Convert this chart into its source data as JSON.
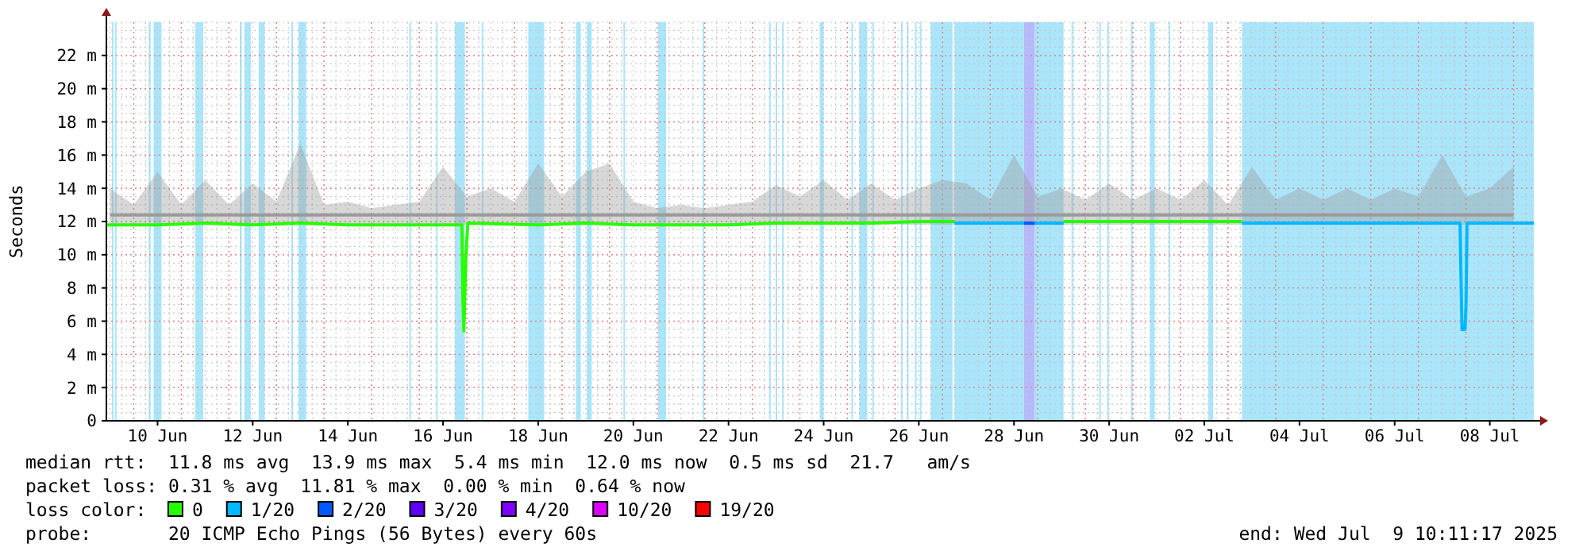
{
  "chart_data": {
    "type": "line",
    "ylabel": "Seconds",
    "legend_title": "loss color:",
    "legend": "bottom",
    "grid": true,
    "xlim": [
      "2025-06-09T10:11",
      "2025-07-09T10:11"
    ],
    "xticks": [
      {
        "value": "2025-06-10T12:00",
        "label": "10 Jun"
      },
      {
        "value": "2025-06-12T12:00",
        "label": "12 Jun"
      },
      {
        "value": "2025-06-14T12:00",
        "label": "14 Jun"
      },
      {
        "value": "2025-06-16T12:00",
        "label": "16 Jun"
      },
      {
        "value": "2025-06-18T12:00",
        "label": "18 Jun"
      },
      {
        "value": "2025-06-20T12:00",
        "label": "20 Jun"
      },
      {
        "value": "2025-06-22T12:00",
        "label": "22 Jun"
      },
      {
        "value": "2025-06-24T12:00",
        "label": "24 Jun"
      },
      {
        "value": "2025-06-26T12:00",
        "label": "26 Jun"
      },
      {
        "value": "2025-06-28T12:00",
        "label": "28 Jun"
      },
      {
        "value": "2025-06-30T12:00",
        "label": "30 Jun"
      },
      {
        "value": "2025-07-02T12:00",
        "label": "02 Jul"
      },
      {
        "value": "2025-07-04T12:00",
        "label": "04 Jul"
      },
      {
        "value": "2025-07-06T12:00",
        "label": "06 Jul"
      },
      {
        "value": "2025-07-08T12:00",
        "label": "08 Jul"
      }
    ],
    "ylim": [
      0,
      24
    ],
    "yticks": [
      0,
      {
        "value": 2,
        "label": "2 m"
      },
      {
        "value": 4,
        "label": "4 m"
      },
      {
        "value": 6,
        "label": "6 m"
      },
      {
        "value": 8,
        "label": "8 m"
      },
      {
        "value": 10,
        "label": "10 m"
      },
      {
        "value": 12,
        "label": "12 m"
      },
      {
        "value": 14,
        "label": "14 m"
      },
      {
        "value": 16,
        "label": "16 m"
      },
      {
        "value": 18,
        "label": "18 m"
      },
      {
        "value": 20,
        "label": "20 m"
      },
      {
        "value": 22,
        "label": "22 m"
      }
    ],
    "bands": [
      {
        "axis": "x",
        "from": "2025-06-09T13:00",
        "to": "2025-06-09T13:45",
        "color": "#a9e5fb"
      },
      {
        "axis": "x",
        "from": "2025-06-09T14:30",
        "to": "2025-06-09T15:15",
        "color": "#a9e5fb"
      },
      {
        "axis": "x",
        "from": "2025-06-10T07:30",
        "to": "2025-06-10T08:30",
        "color": "#a9e5fb"
      },
      {
        "axis": "x",
        "from": "2025-06-10T10:00",
        "to": "2025-06-10T14:00",
        "color": "#a9e5fb"
      },
      {
        "axis": "x",
        "from": "2025-06-11T07:00",
        "to": "2025-06-11T11:00",
        "color": "#a9e5fb"
      },
      {
        "axis": "x",
        "from": "2025-06-12T05:30",
        "to": "2025-06-12T06:30",
        "color": "#a9e5fb"
      },
      {
        "axis": "x",
        "from": "2025-06-12T07:45",
        "to": "2025-06-12T11:00",
        "color": "#a9e5fb"
      },
      {
        "axis": "x",
        "from": "2025-06-12T15:00",
        "to": "2025-06-12T18:00",
        "color": "#a9e5fb"
      },
      {
        "axis": "x",
        "from": "2025-06-13T07:30",
        "to": "2025-06-13T08:15",
        "color": "#a9e5fb"
      },
      {
        "axis": "x",
        "from": "2025-06-13T11:00",
        "to": "2025-06-13T15:00",
        "color": "#a9e5fb"
      },
      {
        "axis": "x",
        "from": "2025-06-15T19:00",
        "to": "2025-06-15T19:45",
        "color": "#a9e5fb"
      },
      {
        "axis": "x",
        "from": "2025-06-16T08:30",
        "to": "2025-06-16T09:15",
        "color": "#a9e5fb"
      },
      {
        "axis": "x",
        "from": "2025-06-16T18:00",
        "to": "2025-06-16T23:00",
        "color": "#a9e5fb"
      },
      {
        "axis": "x",
        "from": "2025-06-17T07:30",
        "to": "2025-06-17T08:15",
        "color": "#a9e5fb"
      },
      {
        "axis": "x",
        "from": "2025-06-18T07:00",
        "to": "2025-06-18T15:00",
        "color": "#a9e5fb"
      },
      {
        "axis": "x",
        "from": "2025-06-19T07:00",
        "to": "2025-06-19T09:30",
        "color": "#a9e5fb"
      },
      {
        "axis": "x",
        "from": "2025-06-19T12:30",
        "to": "2025-06-19T15:00",
        "color": "#a9e5fb"
      },
      {
        "axis": "x",
        "from": "2025-06-20T07:00",
        "to": "2025-06-20T07:45",
        "color": "#a9e5fb"
      },
      {
        "axis": "x",
        "from": "2025-06-21T00:30",
        "to": "2025-06-21T04:30",
        "color": "#a9e5fb"
      },
      {
        "axis": "x",
        "from": "2025-06-21T23:00",
        "to": "2025-06-21T23:45",
        "color": "#a9e5fb"
      },
      {
        "axis": "x",
        "from": "2025-06-23T08:30",
        "to": "2025-06-23T09:15",
        "color": "#a9e5fb"
      },
      {
        "axis": "x",
        "from": "2025-06-23T11:45",
        "to": "2025-06-23T12:30",
        "color": "#a9e5fb"
      },
      {
        "axis": "x",
        "from": "2025-06-23T15:00",
        "to": "2025-06-23T15:45",
        "color": "#a9e5fb"
      },
      {
        "axis": "x",
        "from": "2025-06-24T10:00",
        "to": "2025-06-24T12:00",
        "color": "#a9e5fb"
      },
      {
        "axis": "x",
        "from": "2025-06-25T02:00",
        "to": "2025-06-25T02:45",
        "color": "#a9e5fb"
      },
      {
        "axis": "x",
        "from": "2025-06-25T06:00",
        "to": "2025-06-25T10:00",
        "color": "#a9e5fb"
      },
      {
        "axis": "x",
        "from": "2025-06-25T12:30",
        "to": "2025-06-25T13:15",
        "color": "#a9e5fb"
      },
      {
        "axis": "x",
        "from": "2025-06-26T03:00",
        "to": "2025-06-26T03:45",
        "color": "#a9e5fb"
      },
      {
        "axis": "x",
        "from": "2025-06-26T06:00",
        "to": "2025-06-26T06:45",
        "color": "#a9e5fb"
      },
      {
        "axis": "x",
        "from": "2025-06-26T10:00",
        "to": "2025-06-26T10:45",
        "color": "#a9e5fb"
      },
      {
        "axis": "x",
        "from": "2025-06-26T12:30",
        "to": "2025-06-26T13:15",
        "color": "#a9e5fb"
      },
      {
        "axis": "x",
        "from": "2025-06-26T18:00",
        "to": "2025-06-27T05:00",
        "color": "#a9e5fb"
      },
      {
        "axis": "x",
        "from": "2025-06-27T06:00",
        "to": "2025-06-28T17:00",
        "color": "#a9e5fb"
      },
      {
        "axis": "x",
        "from": "2025-06-28T17:00",
        "to": "2025-06-28T22:30",
        "color": "#b3b9fc"
      },
      {
        "axis": "x",
        "from": "2025-06-28T22:30",
        "to": "2025-06-29T13:00",
        "color": "#a9e5fb"
      },
      {
        "axis": "x",
        "from": "2025-06-29T17:00",
        "to": "2025-06-29T17:45",
        "color": "#a9e5fb"
      },
      {
        "axis": "x",
        "from": "2025-06-30T07:00",
        "to": "2025-06-30T07:45",
        "color": "#a9e5fb"
      },
      {
        "axis": "x",
        "from": "2025-06-30T11:00",
        "to": "2025-06-30T11:45",
        "color": "#a9e5fb"
      },
      {
        "axis": "x",
        "from": "2025-06-30T23:00",
        "to": "2025-06-30T23:45",
        "color": "#a9e5fb"
      },
      {
        "axis": "x",
        "from": "2025-07-01T08:30",
        "to": "2025-07-01T11:00",
        "color": "#a9e5fb"
      },
      {
        "axis": "x",
        "from": "2025-07-01T18:00",
        "to": "2025-07-01T18:45",
        "color": "#a9e5fb"
      },
      {
        "axis": "x",
        "from": "2025-07-02T14:00",
        "to": "2025-07-02T16:30",
        "color": "#a9e5fb"
      },
      {
        "axis": "x",
        "from": "2025-07-03T07:00",
        "to": "2025-07-09T10:11",
        "color": "#a9e5fb"
      }
    ],
    "series": [
      {
        "type": "line",
        "color": "#9a9a9a",
        "x": [
          "2025-06-09T12:00",
          "2025-06-10T00:00",
          "2025-06-10T12:00",
          "2025-06-11T00:00",
          "2025-06-11T12:00",
          "2025-06-12T00:00",
          "2025-06-12T12:00",
          "2025-06-13T00:00",
          "2025-06-13T12:00",
          "2025-06-14T00:00",
          "2025-06-14T12:00",
          "2025-06-15T00:00",
          "2025-06-15T12:00",
          "2025-06-16T00:00",
          "2025-06-16T12:00",
          "2025-06-17T00:00",
          "2025-06-17T12:00",
          "2025-06-18T00:00",
          "2025-06-18T12:00",
          "2025-06-19T00:00",
          "2025-06-19T12:00",
          "2025-06-20T00:00",
          "2025-06-20T12:00",
          "2025-06-21T00:00",
          "2025-06-21T12:00",
          "2025-06-22T00:00",
          "2025-06-22T12:00",
          "2025-06-23T00:00",
          "2025-06-23T12:00",
          "2025-06-24T00:00",
          "2025-06-24T12:00",
          "2025-06-25T00:00",
          "2025-06-25T12:00",
          "2025-06-26T00:00",
          "2025-06-26T12:00",
          "2025-06-27T00:00",
          "2025-06-27T12:00",
          "2025-06-28T00:00",
          "2025-06-28T12:00",
          "2025-06-29T00:00",
          "2025-06-29T12:00",
          "2025-06-30T00:00",
          "2025-06-30T12:00",
          "2025-07-01T00:00",
          "2025-07-01T12:00",
          "2025-07-02T00:00",
          "2025-07-02T12:00",
          "2025-07-03T00:00",
          "2025-07-03T12:00",
          "2025-07-04T00:00",
          "2025-07-04T12:00",
          "2025-07-05T00:00",
          "2025-07-05T12:00",
          "2025-07-06T00:00",
          "2025-07-06T12:00",
          "2025-07-07T00:00",
          "2025-07-07T12:00",
          "2025-07-08T00:00",
          "2025-07-08T12:00",
          "2025-07-09T00:00"
        ],
        "values": [
          12.4,
          12.4,
          12.4,
          12.4,
          12.4,
          12.4,
          12.4,
          12.4,
          12.4,
          12.4,
          12.4,
          12.4,
          12.4,
          12.4,
          12.4,
          12.4,
          12.4,
          12.4,
          12.4,
          12.4,
          12.4,
          12.4,
          12.4,
          12.4,
          12.4,
          12.4,
          12.4,
          12.4,
          12.4,
          12.4,
          12.4,
          12.4,
          12.4,
          12.4,
          12.4,
          12.4,
          12.4,
          12.4,
          12.4,
          12.4,
          12.4,
          12.4,
          12.4,
          12.4,
          12.4,
          12.4,
          12.4,
          12.4,
          12.4,
          12.4,
          12.4,
          12.4,
          12.4,
          12.4,
          12.4,
          12.4,
          12.4,
          12.4,
          12.4,
          12.4
        ],
        "lower": [
          11.8,
          11.8,
          11.8,
          11.8,
          11.8,
          11.8,
          11.8,
          11.8,
          11.8,
          11.8,
          11.8,
          11.8,
          11.8,
          11.8,
          11.8,
          11.8,
          11.8,
          11.8,
          11.8,
          11.8,
          11.8,
          11.8,
          11.8,
          11.8,
          11.8,
          11.8,
          11.8,
          11.8,
          11.8,
          11.8,
          11.8,
          11.8,
          11.8,
          11.8,
          11.8,
          11.8,
          11.8,
          11.8,
          11.8,
          11.8,
          11.8,
          11.8,
          11.8,
          11.8,
          11.8,
          11.8,
          11.8,
          11.8,
          11.8,
          11.8,
          11.8,
          11.8,
          11.8,
          11.8,
          11.8,
          11.8,
          11.8,
          11.8,
          11.8,
          11.8
        ],
        "upper": [
          14.0,
          13.0,
          15.0,
          13.0,
          14.5,
          13.0,
          14.3,
          13.2,
          16.7,
          13.0,
          13.2,
          12.8,
          13.0,
          13.2,
          15.3,
          13.5,
          14.0,
          13.2,
          15.5,
          13.5,
          15.0,
          15.5,
          13.2,
          12.8,
          13.0,
          12.8,
          13.0,
          13.2,
          14.2,
          13.5,
          14.5,
          13.3,
          14.3,
          13.3,
          14.0,
          14.5,
          14.3,
          13.3,
          16.0,
          13.5,
          14.0,
          13.3,
          14.3,
          13.3,
          14.0,
          13.3,
          14.5,
          13.0,
          15.3,
          13.3,
          14.0,
          13.3,
          14.0,
          13.3,
          14.0,
          13.5,
          16.0,
          13.5,
          14.0,
          15.3
        ]
      },
      {
        "name": "0",
        "color": "#26ff00",
        "x": [
          "2025-06-09T10:11",
          "2025-06-10T12:00",
          "2025-06-11T12:00",
          "2025-06-12T12:00",
          "2025-06-13T12:00",
          "2025-06-14T12:00",
          "2025-06-15T12:00",
          "2025-06-16T12:00",
          "2025-06-16T21:30",
          "2025-06-16T22:00",
          "2025-06-16T22:30",
          "2025-06-16T23:30",
          "2025-06-17T00:30",
          "2025-06-18T12:00",
          "2025-06-19T12:00",
          "2025-06-20T12:00",
          "2025-06-21T12:00",
          "2025-06-22T12:00",
          "2025-06-23T12:00",
          "2025-06-24T12:00",
          "2025-06-25T12:00",
          "2025-06-26T12:00",
          "2025-06-27T06:00",
          "2025-06-28T00:00",
          "2025-06-29T13:00",
          "2025-06-30T12:00",
          "2025-07-01T12:00",
          "2025-07-02T12:00",
          "2025-07-03T07:00"
        ],
        "values": [
          11.8,
          11.8,
          11.9,
          11.8,
          11.9,
          11.8,
          11.8,
          11.8,
          11.8,
          7.5,
          5.4,
          9.8,
          11.9,
          11.8,
          11.9,
          11.8,
          11.8,
          11.8,
          11.9,
          11.9,
          11.9,
          12.0,
          12.0,
          null,
          12.0,
          12.0,
          12.0,
          12.0,
          12.0
        ]
      },
      {
        "name": "1/20",
        "color": "#00b8ff",
        "x": [
          "2025-06-27T06:00",
          "2025-06-28T17:00",
          "2025-06-28T20:00",
          "2025-06-28T22:30",
          "2025-06-29T13:00",
          "2025-07-01T00:00",
          "2025-07-03T07:00",
          "2025-07-04T12:00",
          "2025-07-05T12:00",
          "2025-07-06T12:00",
          "2025-07-07T12:00",
          "2025-07-07T21:00",
          "2025-07-07T21:30",
          "2025-07-07T22:00",
          "2025-07-07T23:30",
          "2025-07-08T00:00",
          "2025-07-08T00:30",
          "2025-07-08T12:00",
          "2025-07-09T10:11"
        ],
        "values": [
          11.9,
          11.9,
          null,
          11.9,
          11.9,
          null,
          11.9,
          11.9,
          11.9,
          11.9,
          11.9,
          11.9,
          8.4,
          5.5,
          5.5,
          7.0,
          11.9,
          11.9,
          11.9
        ]
      },
      {
        "name": "2/20",
        "color": "#0059ff",
        "x": [
          "2025-06-28T17:00",
          "2025-06-28T22:30"
        ],
        "values": [
          11.9,
          11.9
        ]
      },
      {
        "name": "3/20",
        "color": "#5e00ff"
      },
      {
        "name": "4/20",
        "color": "#7e00ff"
      },
      {
        "name": "10/20",
        "color": "#dd00ff"
      },
      {
        "name": "19/20",
        "color": "#ff0000"
      }
    ],
    "annotations": [
      "median rtt:  11.8 ms avg  13.9 ms max  5.4 ms min  12.0 ms now  0.5 ms sd  21.7   am/s",
      "packet loss: 0.31 % avg  11.81 % max  0.00 % min  0.64 % now",
      "probe:       20 ICMP Echo Pings (56 Bytes) every 60s",
      "end: Wed Jul  9 10:11:17 2025"
    ]
  }
}
